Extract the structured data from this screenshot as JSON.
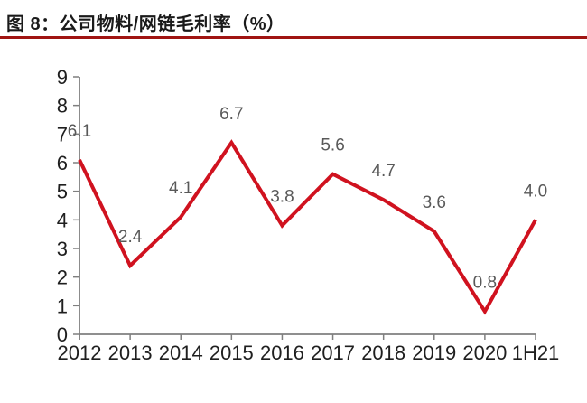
{
  "figure": {
    "label": "图 8",
    "title": "图 8：公司物料/网链毛利率（%）"
  },
  "chart_data": {
    "type": "line",
    "title": "图 8：公司物料/网链毛利率（%）",
    "categories": [
      "2012",
      "2013",
      "2014",
      "2015",
      "2016",
      "2017",
      "2018",
      "2019",
      "2020",
      "1H21"
    ],
    "values": [
      6.1,
      2.4,
      4.1,
      6.7,
      3.8,
      5.6,
      4.7,
      3.6,
      0.8,
      4.0
    ],
    "xlabel": "",
    "ylabel": "",
    "ylim": [
      0,
      9
    ],
    "y_tick_step": 1,
    "y_tick_labels": [
      "0",
      "1",
      "2",
      "3",
      "4",
      "5",
      "6",
      "7",
      "8",
      "9"
    ],
    "grid": false,
    "legend": "none",
    "data_labels_visible": true,
    "data_label_decimals": 1
  },
  "colors": {
    "line": "#D0121F",
    "axis": "#7F7F7F",
    "tick_label": "#1F1F1F",
    "data_label": "#595959",
    "title_text": "#1A1A1A",
    "title_rule": "#A01412",
    "background": "#FFFFFF"
  }
}
